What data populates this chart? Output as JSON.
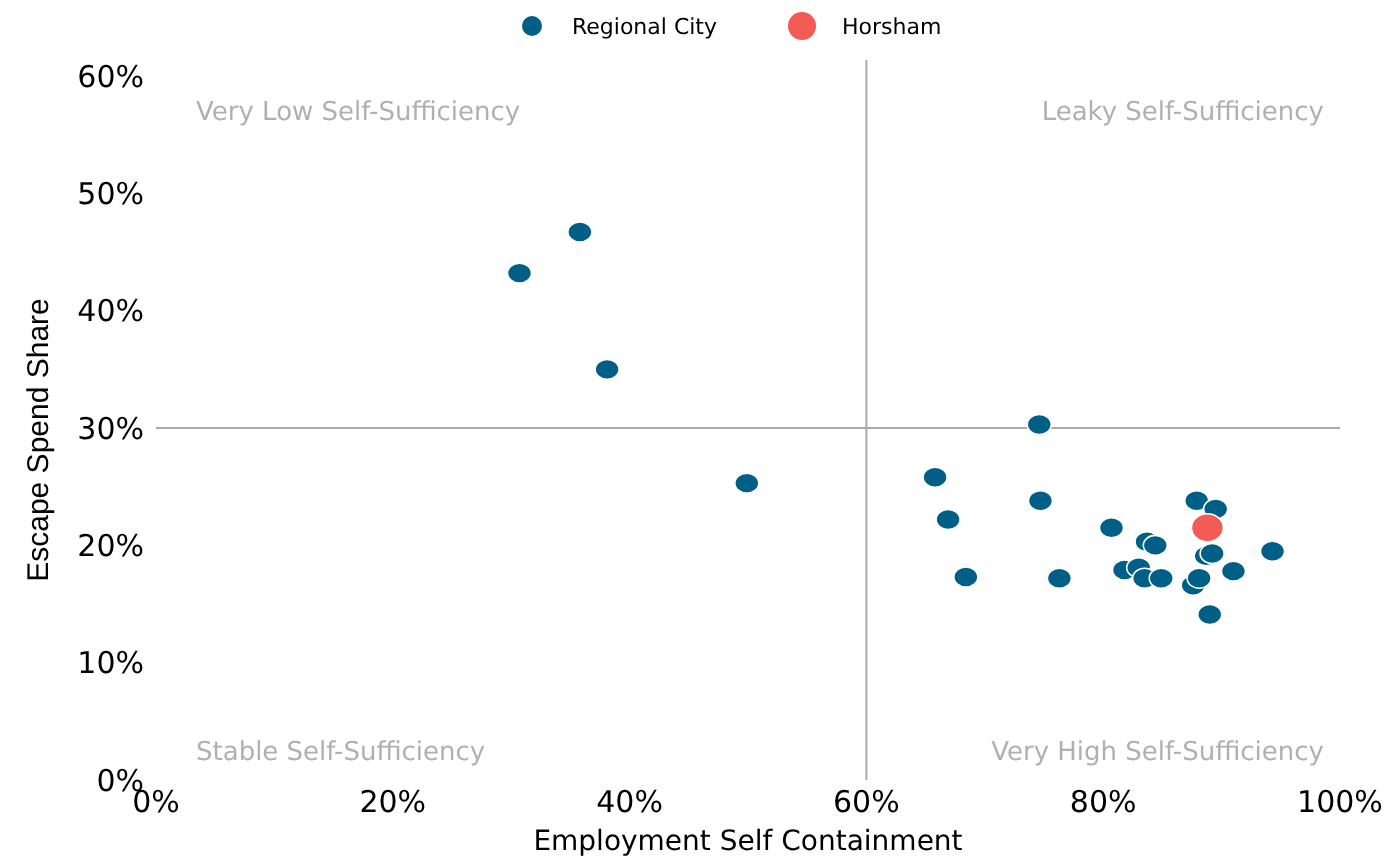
{
  "chart_data": {
    "type": "scatter",
    "xlabel": "Employment Self Containment",
    "ylabel": "Escape Spend Share",
    "xlim": [
      0,
      100
    ],
    "ylim": [
      0,
      60
    ],
    "xticks": [
      {
        "value": 0,
        "label": "0%"
      },
      {
        "value": 20,
        "label": "20%"
      },
      {
        "value": 40,
        "label": "40%"
      },
      {
        "value": 60,
        "label": "60%"
      },
      {
        "value": 80,
        "label": "80%"
      },
      {
        "value": 100,
        "label": "100%"
      }
    ],
    "yticks": [
      {
        "value": 0,
        "label": "0%"
      },
      {
        "value": 10,
        "label": "10%"
      },
      {
        "value": 20,
        "label": "20%"
      },
      {
        "value": 30,
        "label": "30%"
      },
      {
        "value": 40,
        "label": "40%"
      },
      {
        "value": 50,
        "label": "50%"
      },
      {
        "value": 60,
        "label": "60%"
      }
    ],
    "series": [
      {
        "name": "Regional City",
        "color": "#005f86",
        "x": [
          30.7,
          35.8,
          38.1,
          49.9,
          65.8,
          66.9,
          68.4,
          74.6,
          74.7,
          76.3,
          80.7,
          81.8,
          83.0,
          83.5,
          83.7,
          84.4,
          84.9,
          87.6,
          88.1,
          87.9,
          89.5,
          88.7,
          89.2,
          89.0,
          91.0,
          94.3
        ],
        "values": [
          43.2,
          46.7,
          35.0,
          25.3,
          25.8,
          22.2,
          17.3,
          30.3,
          23.8,
          17.2,
          21.5,
          17.9,
          18.1,
          17.2,
          20.3,
          20.0,
          17.2,
          16.6,
          17.2,
          23.8,
          23.1,
          19.1,
          19.3,
          14.1,
          17.8,
          19.5
        ]
      },
      {
        "name": "Horsham",
        "color": "#f25c54",
        "x": [
          88.8
        ],
        "values": [
          21.5
        ]
      }
    ],
    "ref_lines": [
      {
        "axis": "x",
        "value": 60,
        "color": "#aaaaaa"
      },
      {
        "axis": "y",
        "value": 30,
        "color": "#aaaaaa"
      }
    ],
    "annotations": [
      "Very Low Self-Sufficiency",
      "Leaky Self-Sufficiency",
      "Stable Self-Sufficiency",
      "Very High Self-Sufficiency"
    ],
    "legend": "top",
    "marker": "circle",
    "grid": false
  }
}
